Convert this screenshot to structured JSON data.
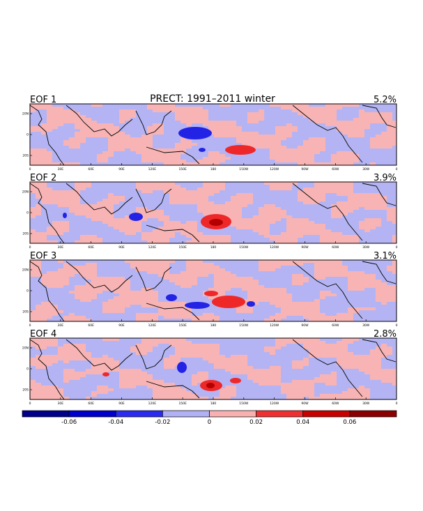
{
  "chart_data": {
    "type": "heatmap",
    "title": "PRECT: 1991–2011 winter",
    "panels": [
      {
        "label": "EOF 1",
        "variance": "5.2%"
      },
      {
        "label": "EOF 2",
        "variance": "3.9%"
      },
      {
        "label": "EOF 3",
        "variance": "3.1%"
      },
      {
        "label": "EOF 4",
        "variance": "2.8%"
      }
    ],
    "x_ticks": [
      "0",
      "30E",
      "60E",
      "90E",
      "120E",
      "150E",
      "180",
      "150W",
      "120W",
      "90W",
      "60W",
      "30W",
      "0"
    ],
    "y_ticks": [
      "20N",
      "0",
      "20S"
    ],
    "colorbar": {
      "levels": [
        -0.08,
        -0.06,
        -0.04,
        -0.02,
        0,
        0.02,
        0.04,
        0.06,
        0.08
      ],
      "labels": [
        "-0.06",
        "-0.04",
        "-0.02",
        "0",
        "0.02",
        "0.04",
        "0.06"
      ],
      "colors": [
        "#00008b",
        "#0000cd",
        "#2a2af0",
        "#b0b0f5",
        "#f8b0b0",
        "#f03030",
        "#c80000",
        "#8b0000"
      ]
    }
  },
  "colors": {
    "neg_light": "#b4b4f4",
    "pos_light": "#f8b4b4",
    "neg_mid": "#2323e6",
    "pos_mid": "#ee2828",
    "pos_dark": "#b40000"
  }
}
